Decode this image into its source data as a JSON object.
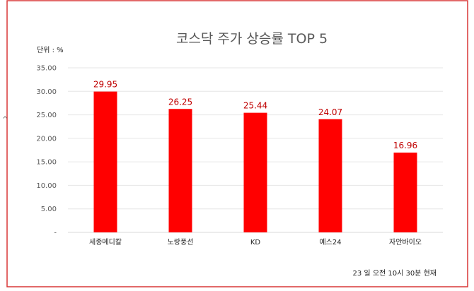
{
  "accent_color": "#ff0000",
  "border_color": "#d93636",
  "label_color": "#c00000",
  "chart_data": {
    "type": "bar",
    "title": "코스닥 주가 상승률 TOP 5",
    "unit_label": "단위 : %",
    "categories": [
      "세종메디칼",
      "노랑풍선",
      "KD",
      "예스24",
      "자안바이오"
    ],
    "values": [
      29.95,
      26.25,
      25.44,
      24.07,
      16.96
    ],
    "value_labels": [
      "29.95",
      "26.25",
      "25.44",
      "24.07",
      "16.96"
    ],
    "ylim": [
      0,
      35
    ],
    "y_ticks": [
      35,
      30,
      25,
      20,
      15,
      10,
      5,
      0
    ],
    "y_tick_labels": [
      "35.00",
      "30.00",
      "25.00",
      "20.00",
      "15.00",
      "10.00",
      "5.00",
      "-"
    ],
    "grid": true,
    "legend": "none",
    "footnote": "23 일  오전 10시 30분 현재",
    "side_mark": "^"
  }
}
